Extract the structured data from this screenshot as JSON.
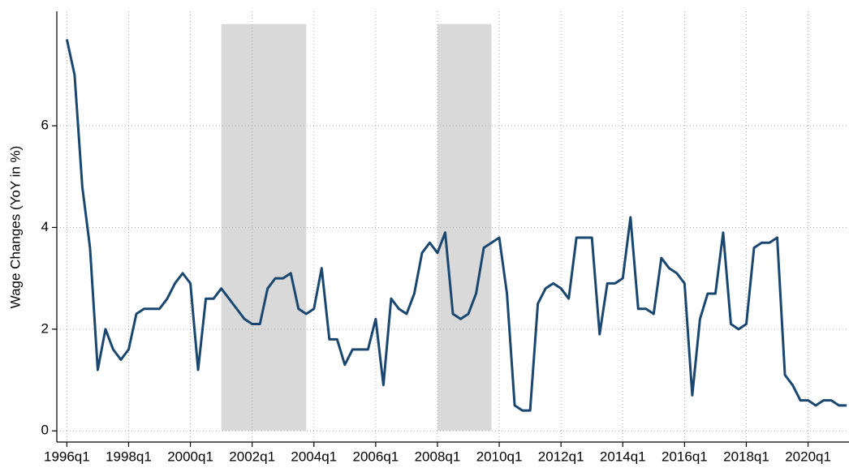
{
  "chart_data": {
    "type": "line",
    "y_label": "Wage Changes (YoY in %)",
    "categories": [
      "1996q1",
      null,
      null,
      null,
      null,
      null,
      null,
      null,
      "1998q1",
      null,
      null,
      null,
      null,
      null,
      null,
      null,
      "2000q1",
      null,
      null,
      null,
      null,
      null,
      null,
      null,
      "2002q1",
      null,
      null,
      null,
      null,
      null,
      null,
      null,
      "2004q1",
      null,
      null,
      null,
      null,
      null,
      null,
      null,
      "2006q1",
      null,
      null,
      null,
      null,
      null,
      null,
      null,
      "2008q1",
      null,
      null,
      null,
      null,
      null,
      null,
      null,
      "2010q1",
      null,
      null,
      null,
      null,
      null,
      null,
      null,
      "2012q1",
      null,
      null,
      null,
      null,
      null,
      null,
      null,
      "2014q1",
      null,
      null,
      null,
      null,
      null,
      null,
      null,
      "2016q1",
      null,
      null,
      null,
      null,
      null,
      null,
      null,
      "2018q1",
      null,
      null,
      null,
      null,
      null,
      null,
      null,
      "2020q1",
      null,
      null,
      null,
      null,
      null
    ],
    "series": [
      {
        "color": "#1a476f",
        "values": [
          7.7,
          7.0,
          4.8,
          3.6,
          1.2,
          2.0,
          1.6,
          1.4,
          1.6,
          2.3,
          2.4,
          2.4,
          2.4,
          2.6,
          2.9,
          3.1,
          2.9,
          1.2,
          2.6,
          2.6,
          2.8,
          2.6,
          2.4,
          2.2,
          2.1,
          2.1,
          2.8,
          3.0,
          3.0,
          3.1,
          2.4,
          2.3,
          2.4,
          3.2,
          1.8,
          1.8,
          1.3,
          1.6,
          1.6,
          1.6,
          2.2,
          0.9,
          2.6,
          2.4,
          2.3,
          2.7,
          3.5,
          3.7,
          3.5,
          3.9,
          2.3,
          2.2,
          2.3,
          2.7,
          3.6,
          3.7,
          3.8,
          2.7,
          0.5,
          0.4,
          0.4,
          2.5,
          2.8,
          2.9,
          2.8,
          2.6,
          3.8,
          3.8,
          3.8,
          1.9,
          2.9,
          2.9,
          3.0,
          4.2,
          2.4,
          2.4,
          2.3,
          3.4,
          3.2,
          3.1,
          2.9,
          0.7,
          2.2,
          2.7,
          2.7,
          3.9,
          2.1,
          2.0,
          2.1,
          3.6,
          3.7,
          3.7,
          3.8,
          1.1,
          0.9,
          0.6,
          0.6,
          0.5,
          0.6,
          0.6,
          0.5,
          0.5
        ]
      }
    ],
    "shaded": [
      [
        20,
        31
      ],
      [
        48,
        55
      ]
    ],
    "shade_color": "#d9d9d9",
    "shade_ylim": [
      0,
      8
    ],
    "xlim": [
      -1.3,
      101.3
    ],
    "ylim": [
      -0.22,
      8.25
    ],
    "yticks": [
      0,
      2,
      4,
      6
    ],
    "grid": true
  }
}
